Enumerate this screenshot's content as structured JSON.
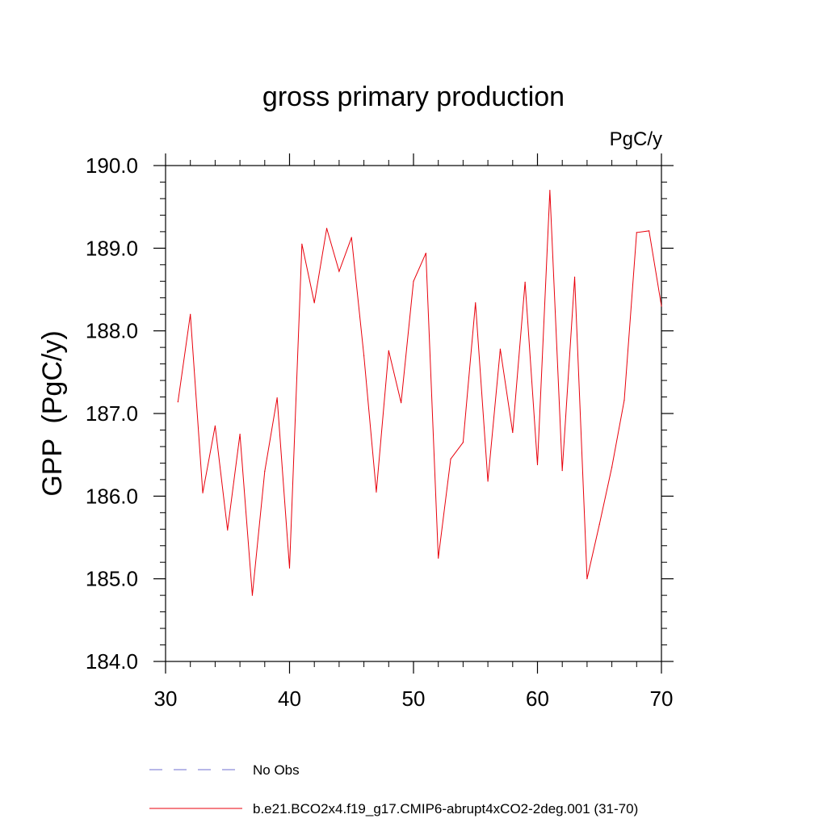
{
  "chart_data": {
    "type": "line",
    "title": "gross primary production",
    "units_label": "PgC/y",
    "ylabel": "GPP  (PgC/y)",
    "xlabel": "",
    "xlim": [
      30,
      70
    ],
    "ylim": [
      184.0,
      190.0
    ],
    "x_ticks": [
      30,
      40,
      50,
      60,
      70
    ],
    "x_tick_labels": [
      "30",
      "40",
      "50",
      "60",
      "70"
    ],
    "y_ticks": [
      184.0,
      185.0,
      186.0,
      187.0,
      188.0,
      189.0,
      190.0
    ],
    "y_tick_labels": [
      "184.0",
      "185.0",
      "186.0",
      "187.0",
      "188.0",
      "189.0",
      "190.0"
    ],
    "grid": false,
    "legend_placement": "bottom",
    "series": [
      {
        "name": "b.e21.BCO2x4.f19_g17.CMIP6-abrupt4xCO2-2deg.001 (31-70)",
        "color": "#e8000b",
        "style": "solid",
        "x": [
          31,
          32,
          33,
          34,
          35,
          36,
          37,
          38,
          39,
          40,
          41,
          42,
          43,
          44,
          45,
          46,
          47,
          48,
          49,
          50,
          51,
          52,
          53,
          54,
          55,
          56,
          57,
          58,
          59,
          60,
          61,
          62,
          63,
          64,
          65,
          66,
          67,
          68,
          69,
          70
        ],
        "y": [
          187.14,
          188.2,
          186.04,
          186.85,
          185.59,
          186.75,
          184.8,
          186.3,
          187.19,
          185.13,
          189.05,
          188.34,
          189.24,
          188.72,
          189.13,
          187.7,
          186.05,
          187.76,
          187.13,
          188.6,
          188.94,
          185.25,
          186.45,
          186.65,
          188.34,
          186.18,
          187.78,
          186.77,
          188.59,
          186.38,
          189.7,
          186.31,
          188.65,
          185.0,
          185.66,
          186.35,
          187.16,
          189.19,
          189.21,
          188.3
        ]
      }
    ],
    "legend": [
      {
        "label": "No Obs",
        "color": "#8c8cd9",
        "style": "dashed"
      },
      {
        "label": "b.e21.BCO2x4.f19_g17.CMIP6-abrupt4xCO2-2deg.001 (31-70)",
        "color": "#e8000b",
        "style": "solid"
      }
    ]
  }
}
